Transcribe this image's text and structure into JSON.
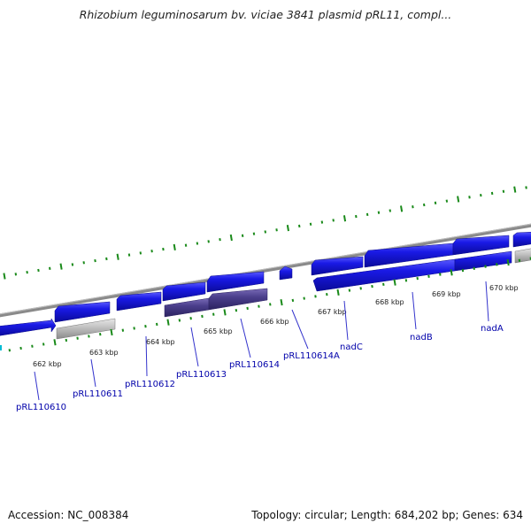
{
  "title": "Rhizobium leguminosarum bv. viciae 3841 plasmid pRL11, compl...",
  "footer": {
    "accession": "Accession: NC_008384",
    "topology": "Topology: circular; Length: 684,202 bp; Genes: 634"
  },
  "scale_labels": [
    "662 kbp",
    "663 kbp",
    "664 kbp",
    "665 kbp",
    "666 kbp",
    "667 kbp",
    "668 kbp",
    "669 kbp",
    "670 kbp"
  ],
  "gene_labels": [
    "pRL110610",
    "pRL110611",
    "pRL110612",
    "pRL110613",
    "pRL110614",
    "pRL110614A",
    "nadC",
    "nadB",
    "nadA"
  ],
  "colors": {
    "backbone": "#7a7a7a",
    "gene_blue": "#1a1ae6",
    "gene_purple": "#4b3f8c",
    "gene_gray": "#c0c0c0",
    "tick_green": "#1a8a1a",
    "label_blue": "#0000aa",
    "leader_line": "#3333cc"
  }
}
